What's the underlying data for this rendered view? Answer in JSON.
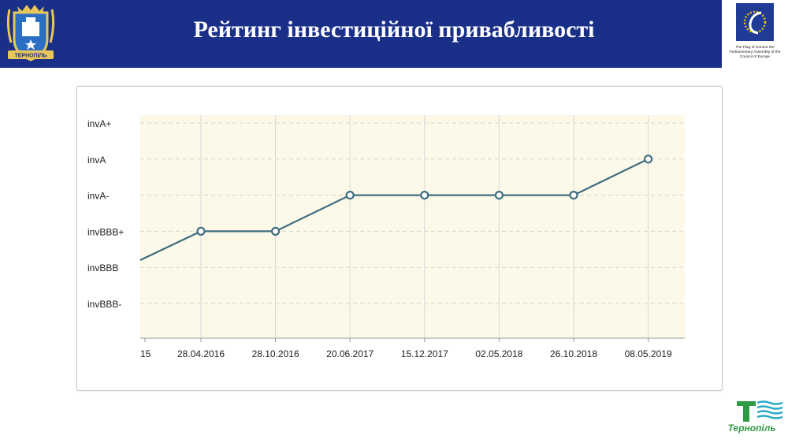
{
  "header": {
    "title": "Рейтинг інвестиційної привабливості"
  },
  "crest": {
    "label": "ТЕРНОПІЛЬ"
  },
  "coe_badge": {
    "caption": "The Flag of Honour the Parliamentary Assembly of the Council of Europe"
  },
  "city_logo": {
    "label": "Тернопіль"
  },
  "colors": {
    "header_bg": "#1a2f87",
    "plot_bg": "#fdf9e8",
    "line": "#3e6e80",
    "logo_green": "#2e9a43"
  },
  "chart_data": {
    "type": "line",
    "title": "",
    "xlabel": "",
    "ylabel": "",
    "y_levels": [
      "invBBB-",
      "invBBB",
      "invBBB+",
      "invA-",
      "invA",
      "invA+"
    ],
    "x_ticks": [
      "15",
      "28.04.2016",
      "28.10.2016",
      "20.06.2017",
      "15.12.2017",
      "02.05.2018",
      "26.10.2018",
      "08.05.2019"
    ],
    "series": [
      {
        "values": [
          "invBBB+",
          "invBBB+",
          "invA-",
          "invA-",
          "invA-",
          "invA-",
          "invA"
        ],
        "x": [
          "28.04.2016",
          "28.10.2016",
          "20.06.2017",
          "15.12.2017",
          "02.05.2018",
          "26.10.2018",
          "08.05.2019"
        ]
      }
    ],
    "line_enters_from_left_at": 1.2,
    "grid": true,
    "legend": "none"
  }
}
